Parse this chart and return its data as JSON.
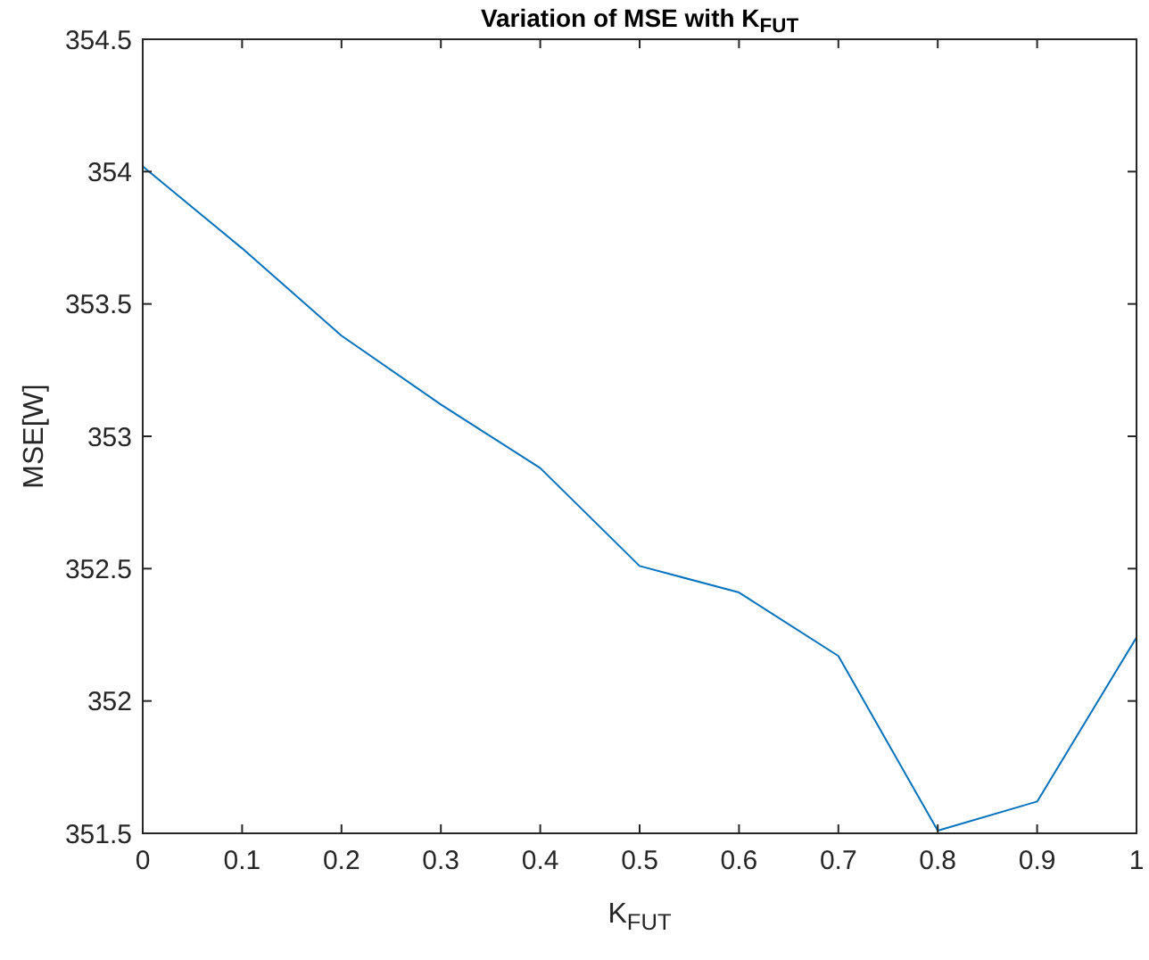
{
  "chart_data": {
    "type": "line",
    "title": "Variation of MSE with K$_{FUT}$",
    "xlabel": "K$_{FUT}$",
    "ylabel": "MSE[W]",
    "x": [
      0,
      0.1,
      0.2,
      0.3,
      0.4,
      0.5,
      0.6,
      0.7,
      0.8,
      0.9,
      1
    ],
    "series": [
      {
        "color": "#0072bd",
        "values": [
          354.02,
          353.71,
          353.38,
          353.12,
          352.88,
          352.51,
          352.41,
          352.17,
          351.51,
          351.62,
          352.24
        ]
      }
    ],
    "xlim": [
      0,
      1
    ],
    "xticks": [
      0,
      0.1,
      0.2,
      0.3,
      0.4,
      0.5,
      0.6,
      0.7,
      0.8,
      0.9,
      1
    ],
    "ylim": [
      351.5,
      354.5
    ],
    "yticks": [
      351.5,
      352,
      352.5,
      353,
      353.5,
      354,
      354.5
    ],
    "grid": false,
    "marker": "none",
    "line_style": "solid"
  }
}
